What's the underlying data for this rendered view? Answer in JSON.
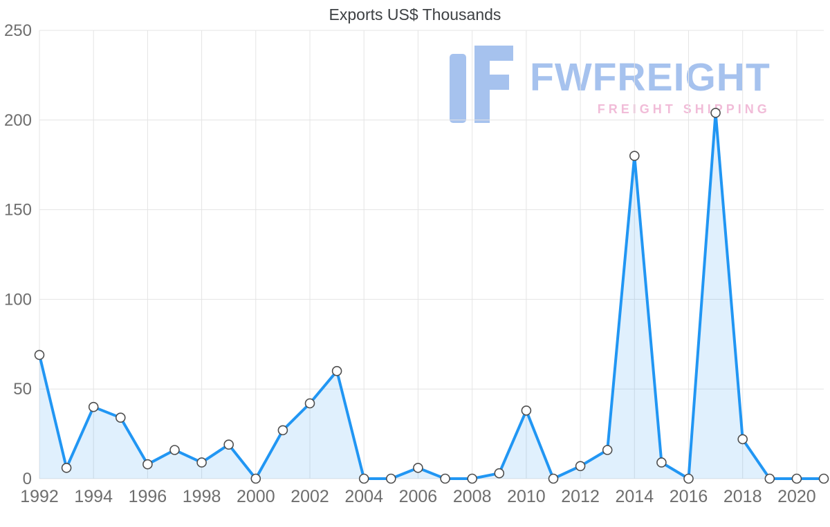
{
  "watermark": {
    "brand": "FWFREIGHT",
    "tagline": "FREIGHT SHIPPING",
    "brand_color": "#a6c2ee",
    "tagline_color": "#f1bcd8"
  },
  "chart_data": {
    "type": "area",
    "title": "Exports US$ Thousands",
    "x": [
      1992,
      1993,
      1994,
      1995,
      1996,
      1997,
      1998,
      1999,
      2000,
      2001,
      2002,
      2003,
      2004,
      2005,
      2006,
      2007,
      2008,
      2009,
      2010,
      2011,
      2012,
      2013,
      2014,
      2015,
      2016,
      2017,
      2018,
      2019,
      2020,
      2021
    ],
    "values": [
      69,
      6,
      40,
      34,
      8,
      16,
      9,
      19,
      0,
      27,
      42,
      60,
      0,
      0,
      6,
      0,
      0,
      3,
      38,
      0,
      7,
      16,
      180,
      9,
      0,
      204,
      22,
      0,
      0,
      0
    ],
    "series_name": "Exports US$ Thousands",
    "xlabel": "",
    "ylabel": "",
    "ylim": [
      0,
      250
    ],
    "y_ticks": [
      0,
      50,
      100,
      150,
      200,
      250
    ],
    "x_ticks": [
      1992,
      1994,
      1996,
      1998,
      2000,
      2002,
      2004,
      2006,
      2008,
      2010,
      2012,
      2014,
      2016,
      2018,
      2020
    ],
    "grid": true,
    "legend": false,
    "colors": {
      "line": "#2196f3",
      "area": "rgba(33,150,243,0.14)",
      "marker_fill": "#ffffff",
      "marker_stroke": "#4d4d4d",
      "grid": "#e4e4e4",
      "title": "#3d4043",
      "tick": "#6e6e6e"
    }
  }
}
